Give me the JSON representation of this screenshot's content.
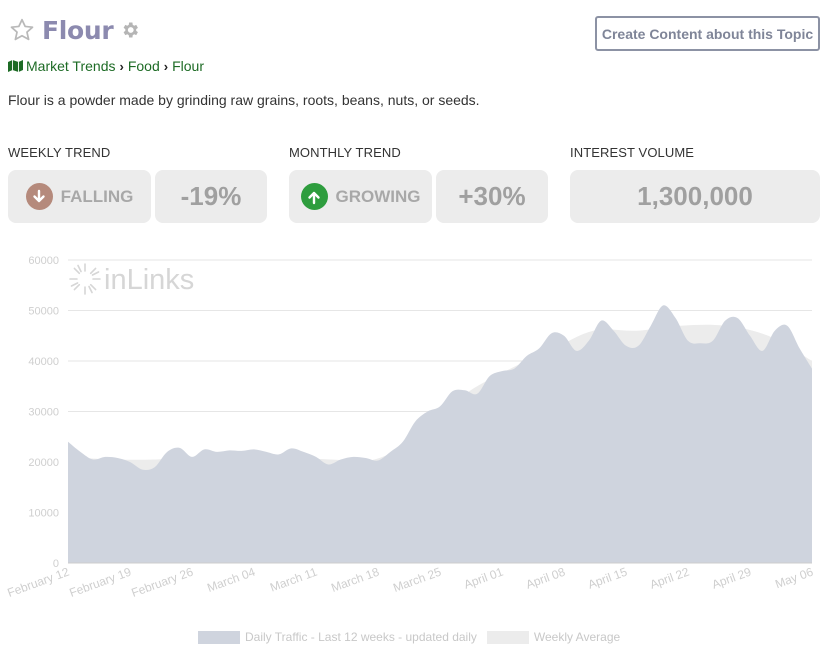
{
  "topic": {
    "title": "Flour",
    "description": "Flour is a powder made by grinding raw grains, roots, beans, nuts, or seeds."
  },
  "header": {
    "create_button_label": "Create Content about this Topic"
  },
  "breadcrumb": [
    "Market Trends",
    "Food",
    "Flour"
  ],
  "stats": {
    "weekly": {
      "label": "WEEKLY TREND",
      "direction": "FALLING",
      "percent": "-19%",
      "icon": "arrow-down-icon",
      "icon_color": "#b58a7c"
    },
    "monthly": {
      "label": "MONTHLY TREND",
      "direction": "GROWING",
      "percent": "+30%",
      "icon": "arrow-up-icon",
      "icon_color": "#2e9d3e"
    },
    "volume": {
      "label": "INTEREST VOLUME",
      "value": "1,300,000"
    }
  },
  "colors": {
    "title": "#8c8aaf",
    "breadcrumb": "#1d6b25",
    "daily_fill": "#cfd4de",
    "weekly_fill": "#ececec",
    "grid": "#e6e6e6",
    "axis_text": "#cfcfcf"
  },
  "chart_data": {
    "type": "area",
    "watermark": "inLinks",
    "ylim": [
      0,
      60000
    ],
    "yticks": [
      0,
      10000,
      20000,
      30000,
      40000,
      50000,
      60000
    ],
    "xtick_labels": [
      "February 12",
      "February 19",
      "February 26",
      "March 04",
      "March 11",
      "March 18",
      "March 25",
      "April 01",
      "April 08",
      "April 15",
      "April 22",
      "April 29",
      "May 06"
    ],
    "legend": [
      "Daily Traffic - Last 12 weeks - updated daily",
      "Weekly Average"
    ],
    "series": [
      {
        "name": "Daily Traffic - Last 12 weeks - updated daily",
        "values": [
          24000,
          22000,
          20500,
          21000,
          20800,
          20000,
          18500,
          19000,
          22000,
          22800,
          21000,
          22500,
          22000,
          22300,
          22200,
          22500,
          22000,
          21500,
          22700,
          22000,
          21000,
          19500,
          20500,
          21000,
          20800,
          20300,
          22000,
          24000,
          28000,
          30000,
          31000,
          34000,
          34200,
          33500,
          37000,
          38000,
          38500,
          41000,
          42500,
          45500,
          45000,
          42000,
          44000,
          48000,
          46000,
          43000,
          43000,
          47000,
          51000,
          48500,
          44000,
          43500,
          44000,
          48000,
          48500,
          45000,
          42000,
          46000,
          47000,
          42500,
          38500
        ]
      },
      {
        "name": "Weekly Average",
        "values": [
          21000,
          20500,
          20500,
          21000,
          21500,
          21000,
          20500,
          20500,
          25000,
          33000,
          38000,
          42000,
          46000,
          46000,
          47000,
          47000,
          45000,
          40000
        ]
      }
    ]
  }
}
